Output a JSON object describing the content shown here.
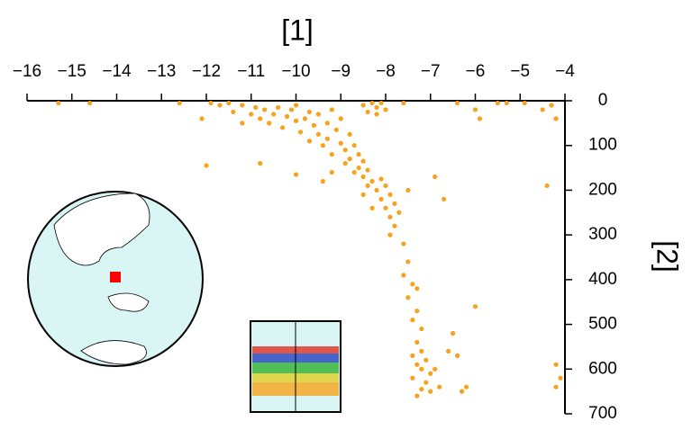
{
  "chart_data": {
    "type": "scatter",
    "title": "[1]",
    "y_label": "[2]",
    "color": "#f7a21b",
    "xlim": [
      -16,
      -4
    ],
    "ylim": [
      0,
      700
    ],
    "y_inverted": true,
    "x_axis_position": "top",
    "y_axis_position": "right",
    "xticks": [
      {
        "value": -16,
        "label": "−16"
      },
      {
        "value": -15,
        "label": "−15"
      },
      {
        "value": -14,
        "label": "−14"
      },
      {
        "value": -13,
        "label": "−13"
      },
      {
        "value": -12,
        "label": "−12"
      },
      {
        "value": -11,
        "label": "−11"
      },
      {
        "value": -10,
        "label": "−10"
      },
      {
        "value": -9,
        "label": "−9"
      },
      {
        "value": -8,
        "label": "−8"
      },
      {
        "value": -7,
        "label": "−7"
      },
      {
        "value": -6,
        "label": "−6"
      },
      {
        "value": -5,
        "label": "−5"
      },
      {
        "value": -4,
        "label": "−4"
      }
    ],
    "yticks": [
      0,
      100,
      200,
      300,
      400,
      500,
      600,
      700
    ],
    "x": [
      -15.3,
      -14.6,
      -12.6,
      -12.1,
      -11.9,
      -11.7,
      -11.5,
      -11.4,
      -11.2,
      -11.0,
      -10.9,
      -10.8,
      -10.7,
      -10.6,
      -10.5,
      -10.4,
      -10.3,
      -10.2,
      -10.1,
      -10.0,
      -10.0,
      -9.9,
      -9.8,
      -9.7,
      -9.7,
      -9.6,
      -9.5,
      -9.5,
      -9.4,
      -9.3,
      -9.3,
      -9.2,
      -9.2,
      -9.1,
      -9.0,
      -9.0,
      -8.9,
      -8.9,
      -8.8,
      -8.8,
      -8.7,
      -8.7,
      -8.6,
      -8.6,
      -8.5,
      -8.5,
      -8.4,
      -8.4,
      -8.3,
      -8.3,
      -8.2,
      -8.2,
      -8.1,
      -8.0,
      -8.4,
      -8.5,
      -8.2,
      -8.1,
      -8.1,
      -8.0,
      -8.0,
      -7.9,
      -7.9,
      -7.8,
      -7.8,
      -7.9,
      -7.7,
      -8.3,
      -8.5,
      -9.4,
      -9.2,
      -10.0,
      -11.2,
      -12.0,
      -10.8,
      -7.6,
      -7.5,
      -7.6,
      -7.4,
      -7.5,
      -7.3,
      -7.3,
      -7.4,
      -7.2,
      -7.3,
      -7.2,
      -7.4,
      -7.1,
      -7.3,
      -7.2,
      -7.0,
      -7.4,
      -7.1,
      -6.9,
      -7.2,
      -7.0,
      -6.8,
      -7.3,
      -6.6,
      -6.5,
      -6.4,
      -6.3,
      -6.2,
      -6.7,
      -6.9,
      -7.5,
      -6.0,
      -5.9,
      -5.5,
      -5.3,
      -4.9,
      -4.5,
      -4.3,
      -4.2,
      -4.4,
      -4.2,
      -4.1,
      -4.2,
      -6.0,
      -7.6,
      -6.4
    ],
    "values": [
      5,
      5,
      5,
      40,
      5,
      10,
      5,
      25,
      10,
      30,
      15,
      40,
      20,
      50,
      30,
      15,
      60,
      35,
      20,
      45,
      10,
      70,
      40,
      25,
      90,
      55,
      30,
      75,
      100,
      50,
      85,
      20,
      120,
      65,
      95,
      40,
      110,
      140,
      75,
      130,
      100,
      160,
      120,
      150,
      170,
      135,
      155,
      190,
      180,
      5,
      15,
      30,
      5,
      20,
      25,
      10,
      200,
      175,
      220,
      190,
      240,
      210,
      260,
      230,
      280,
      300,
      250,
      240,
      210,
      180,
      160,
      165,
      50,
      145,
      140,
      320,
      360,
      390,
      410,
      440,
      420,
      470,
      490,
      510,
      540,
      560,
      570,
      580,
      590,
      600,
      610,
      620,
      630,
      600,
      645,
      650,
      640,
      660,
      560,
      520,
      570,
      650,
      640,
      220,
      170,
      200,
      20,
      40,
      5,
      5,
      5,
      20,
      10,
      40,
      190,
      590,
      620,
      640,
      460,
      5,
      5
    ]
  }
}
